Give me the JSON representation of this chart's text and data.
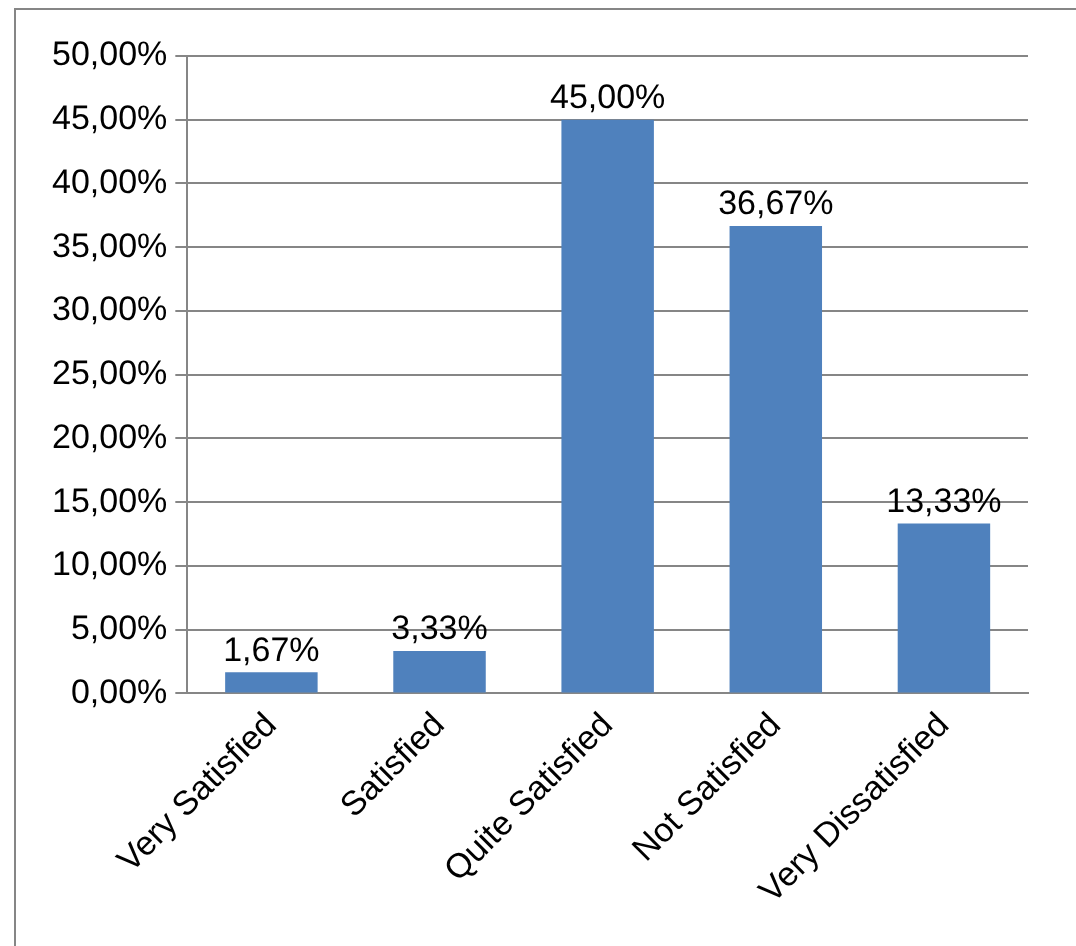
{
  "chart_data": {
    "type": "bar",
    "categories": [
      "Very Satisfied",
      "Satisfied",
      "Quite Satisfied",
      "Not Satisfied",
      "Very Dissatisfied"
    ],
    "values": [
      1.67,
      3.33,
      45,
      36.67,
      13.33
    ],
    "value_labels": [
      "1,67%",
      "3,33%",
      "45,00%",
      "36,67%",
      "13,33%"
    ],
    "color": "#4f81bd",
    "ylim": [
      0,
      50
    ],
    "yticks": [
      {
        "value": 0,
        "label": "0,00%"
      },
      {
        "value": 5,
        "label": "5,00%"
      },
      {
        "value": 10,
        "label": "10,00%"
      },
      {
        "value": 15,
        "label": "15,00%"
      },
      {
        "value": 20,
        "label": "20,00%"
      },
      {
        "value": 25,
        "label": "25,00%"
      },
      {
        "value": 30,
        "label": "30,00%"
      },
      {
        "value": 35,
        "label": "35,00%"
      },
      {
        "value": 40,
        "label": "40,00%"
      },
      {
        "value": 45,
        "label": "45,00%"
      },
      {
        "value": 50,
        "label": "50,00%"
      }
    ],
    "grid": "y",
    "legend": false
  }
}
